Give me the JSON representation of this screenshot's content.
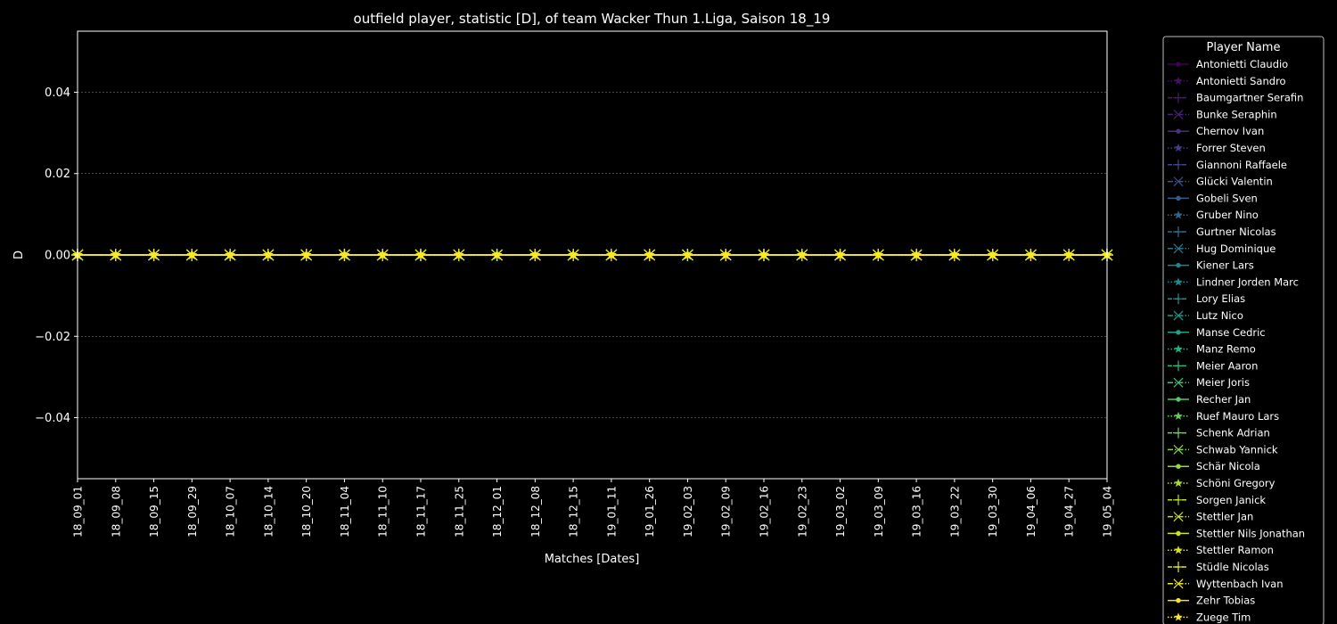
{
  "colors": {
    "background": "#000000",
    "foreground": "#ffffff",
    "grid": "#777777"
  },
  "chart_data": {
    "type": "line",
    "title": "outfield player, statistic [D], of team Wacker Thun 1.Liga, Saison 18_19",
    "xlabel": "Matches [Dates]",
    "ylabel": "D",
    "ylim": [
      -0.055,
      0.055
    ],
    "yticks": [
      -0.04,
      -0.02,
      0.0,
      0.02,
      0.04
    ],
    "ytick_labels": [
      "−0.04",
      "−0.02",
      "0.00",
      "0.02",
      "0.04"
    ],
    "grid": true,
    "x": [
      "18_09_01",
      "18_09_08",
      "18_09_15",
      "18_09_29",
      "18_10_07",
      "18_10_14",
      "18_10_20",
      "18_11_04",
      "18_11_10",
      "18_11_17",
      "18_11_25",
      "18_12_01",
      "18_12_08",
      "18_12_15",
      "19_01_11",
      "19_01_26",
      "19_02_03",
      "19_02_09",
      "19_02_16",
      "19_02_23",
      "19_03_02",
      "19_03_09",
      "19_03_16",
      "19_03_22",
      "19_03_30",
      "19_04_06",
      "19_04_27",
      "19_05_04"
    ],
    "legend": {
      "title": "Player Name",
      "placement": "outside-right"
    },
    "series": [
      {
        "name": "Antonietti Claudio",
        "color": "#440154",
        "marker": "circle",
        "dash": "solid",
        "values": [
          0,
          0,
          0,
          0,
          0,
          0,
          0,
          0,
          0,
          0,
          0,
          0,
          0,
          0,
          0,
          0,
          0,
          0,
          0,
          0,
          0,
          0,
          0,
          0,
          0,
          0,
          0,
          0
        ]
      },
      {
        "name": "Antonietti Sandro",
        "color": "#470e61",
        "marker": "star",
        "dash": "dotted",
        "values": [
          0,
          0,
          0,
          0,
          0,
          0,
          0,
          0,
          0,
          0,
          0,
          0,
          0,
          0,
          0,
          0,
          0,
          0,
          0,
          0,
          0,
          0,
          0,
          0,
          0,
          0,
          0,
          0
        ]
      },
      {
        "name": "Baumgartner Serafin",
        "color": "#481b6d",
        "marker": "plus",
        "dash": "dashed",
        "values": [
          0,
          0,
          0,
          0,
          0,
          0,
          0,
          0,
          0,
          0,
          0,
          0,
          0,
          0,
          0,
          0,
          0,
          0,
          0,
          0,
          0,
          0,
          0,
          0,
          0,
          0,
          0,
          0
        ]
      },
      {
        "name": "Bunke Seraphin",
        "color": "#482576",
        "marker": "x",
        "dash": "dashdot",
        "values": [
          0,
          0,
          0,
          0,
          0,
          0,
          0,
          0,
          0,
          0,
          0,
          0,
          0,
          0,
          0,
          0,
          0,
          0,
          0,
          0,
          0,
          0,
          0,
          0,
          0,
          0,
          0,
          0
        ]
      },
      {
        "name": "Chernov Ivan",
        "color": "#46307e",
        "marker": "circle",
        "dash": "solid",
        "values": [
          0,
          0,
          0,
          0,
          0,
          0,
          0,
          0,
          0,
          0,
          0,
          0,
          0,
          0,
          0,
          0,
          0,
          0,
          0,
          0,
          0,
          0,
          0,
          0,
          0,
          0,
          0,
          0
        ]
      },
      {
        "name": "Forrer Steven",
        "color": "#433e85",
        "marker": "star",
        "dash": "dotted",
        "values": [
          0,
          0,
          0,
          0,
          0,
          0,
          0,
          0,
          0,
          0,
          0,
          0,
          0,
          0,
          0,
          0,
          0,
          0,
          0,
          0,
          0,
          0,
          0,
          0,
          0,
          0,
          0,
          0
        ]
      },
      {
        "name": "Giannoni Raffaele",
        "color": "#3f4889",
        "marker": "plus",
        "dash": "dashed",
        "values": [
          0,
          0,
          0,
          0,
          0,
          0,
          0,
          0,
          0,
          0,
          0,
          0,
          0,
          0,
          0,
          0,
          0,
          0,
          0,
          0,
          0,
          0,
          0,
          0,
          0,
          0,
          0,
          0
        ]
      },
      {
        "name": "Glücki Valentin",
        "color": "#3b528b",
        "marker": "x",
        "dash": "dashdot",
        "values": [
          0,
          0,
          0,
          0,
          0,
          0,
          0,
          0,
          0,
          0,
          0,
          0,
          0,
          0,
          0,
          0,
          0,
          0,
          0,
          0,
          0,
          0,
          0,
          0,
          0,
          0,
          0,
          0
        ]
      },
      {
        "name": "Gobeli Sven",
        "color": "#365c8d",
        "marker": "circle",
        "dash": "solid",
        "values": [
          0,
          0,
          0,
          0,
          0,
          0,
          0,
          0,
          0,
          0,
          0,
          0,
          0,
          0,
          0,
          0,
          0,
          0,
          0,
          0,
          0,
          0,
          0,
          0,
          0,
          0,
          0,
          0
        ]
      },
      {
        "name": "Gruber Nino",
        "color": "#32658e",
        "marker": "star",
        "dash": "dotted",
        "values": [
          0,
          0,
          0,
          0,
          0,
          0,
          0,
          0,
          0,
          0,
          0,
          0,
          0,
          0,
          0,
          0,
          0,
          0,
          0,
          0,
          0,
          0,
          0,
          0,
          0,
          0,
          0,
          0
        ]
      },
      {
        "name": "Gurtner Nicolas",
        "color": "#2e6e8e",
        "marker": "plus",
        "dash": "dashed",
        "values": [
          0,
          0,
          0,
          0,
          0,
          0,
          0,
          0,
          0,
          0,
          0,
          0,
          0,
          0,
          0,
          0,
          0,
          0,
          0,
          0,
          0,
          0,
          0,
          0,
          0,
          0,
          0,
          0
        ]
      },
      {
        "name": "Hug Dominique",
        "color": "#2a788e",
        "marker": "x",
        "dash": "dashdot",
        "values": [
          0,
          0,
          0,
          0,
          0,
          0,
          0,
          0,
          0,
          0,
          0,
          0,
          0,
          0,
          0,
          0,
          0,
          0,
          0,
          0,
          0,
          0,
          0,
          0,
          0,
          0,
          0,
          0
        ]
      },
      {
        "name": "Kiener Lars",
        "color": "#27808e",
        "marker": "circle",
        "dash": "solid",
        "values": [
          0,
          0,
          0,
          0,
          0,
          0,
          0,
          0,
          0,
          0,
          0,
          0,
          0,
          0,
          0,
          0,
          0,
          0,
          0,
          0,
          0,
          0,
          0,
          0,
          0,
          0,
          0,
          0
        ]
      },
      {
        "name": "Lindner Jorden Marc",
        "color": "#23888e",
        "marker": "star",
        "dash": "dotted",
        "values": [
          0,
          0,
          0,
          0,
          0,
          0,
          0,
          0,
          0,
          0,
          0,
          0,
          0,
          0,
          0,
          0,
          0,
          0,
          0,
          0,
          0,
          0,
          0,
          0,
          0,
          0,
          0,
          0
        ]
      },
      {
        "name": "Lory Elias",
        "color": "#21918c",
        "marker": "plus",
        "dash": "dashed",
        "values": [
          0,
          0,
          0,
          0,
          0,
          0,
          0,
          0,
          0,
          0,
          0,
          0,
          0,
          0,
          0,
          0,
          0,
          0,
          0,
          0,
          0,
          0,
          0,
          0,
          0,
          0,
          0,
          0
        ]
      },
      {
        "name": "Lutz Nico",
        "color": "#1f9a8a",
        "marker": "x",
        "dash": "dashdot",
        "values": [
          0,
          0,
          0,
          0,
          0,
          0,
          0,
          0,
          0,
          0,
          0,
          0,
          0,
          0,
          0,
          0,
          0,
          0,
          0,
          0,
          0,
          0,
          0,
          0,
          0,
          0,
          0,
          0
        ]
      },
      {
        "name": "Manse Cedric",
        "color": "#20a386",
        "marker": "circle",
        "dash": "solid",
        "values": [
          0,
          0,
          0,
          0,
          0,
          0,
          0,
          0,
          0,
          0,
          0,
          0,
          0,
          0,
          0,
          0,
          0,
          0,
          0,
          0,
          0,
          0,
          0,
          0,
          0,
          0,
          0,
          0
        ]
      },
      {
        "name": "Manz Remo",
        "color": "#29af7f",
        "marker": "star",
        "dash": "dotted",
        "values": [
          0,
          0,
          0,
          0,
          0,
          0,
          0,
          0,
          0,
          0,
          0,
          0,
          0,
          0,
          0,
          0,
          0,
          0,
          0,
          0,
          0,
          0,
          0,
          0,
          0,
          0,
          0,
          0
        ]
      },
      {
        "name": "Meier Aaron",
        "color": "#35b779",
        "marker": "plus",
        "dash": "dashed",
        "values": [
          0,
          0,
          0,
          0,
          0,
          0,
          0,
          0,
          0,
          0,
          0,
          0,
          0,
          0,
          0,
          0,
          0,
          0,
          0,
          0,
          0,
          0,
          0,
          0,
          0,
          0,
          0,
          0
        ]
      },
      {
        "name": "Meier Joris",
        "color": "#44bf70",
        "marker": "x",
        "dash": "dashdot",
        "values": [
          0,
          0,
          0,
          0,
          0,
          0,
          0,
          0,
          0,
          0,
          0,
          0,
          0,
          0,
          0,
          0,
          0,
          0,
          0,
          0,
          0,
          0,
          0,
          0,
          0,
          0,
          0,
          0
        ]
      },
      {
        "name": "Recher Jan",
        "color": "#54c568",
        "marker": "circle",
        "dash": "solid",
        "values": [
          0,
          0,
          0,
          0,
          0,
          0,
          0,
          0,
          0,
          0,
          0,
          0,
          0,
          0,
          0,
          0,
          0,
          0,
          0,
          0,
          0,
          0,
          0,
          0,
          0,
          0,
          0,
          0
        ]
      },
      {
        "name": "Ruef Mauro Lars",
        "color": "#63cb5f",
        "marker": "star",
        "dash": "dotted",
        "values": [
          0,
          0,
          0,
          0,
          0,
          0,
          0,
          0,
          0,
          0,
          0,
          0,
          0,
          0,
          0,
          0,
          0,
          0,
          0,
          0,
          0,
          0,
          0,
          0,
          0,
          0,
          0,
          0
        ]
      },
      {
        "name": "Schenk Adrian",
        "color": "#75d054",
        "marker": "plus",
        "dash": "dashed",
        "values": [
          0,
          0,
          0,
          0,
          0,
          0,
          0,
          0,
          0,
          0,
          0,
          0,
          0,
          0,
          0,
          0,
          0,
          0,
          0,
          0,
          0,
          0,
          0,
          0,
          0,
          0,
          0,
          0
        ]
      },
      {
        "name": "Schwab Yannick",
        "color": "#86d549",
        "marker": "x",
        "dash": "dashdot",
        "values": [
          0,
          0,
          0,
          0,
          0,
          0,
          0,
          0,
          0,
          0,
          0,
          0,
          0,
          0,
          0,
          0,
          0,
          0,
          0,
          0,
          0,
          0,
          0,
          0,
          0,
          0,
          0,
          0
        ]
      },
      {
        "name": "Schär Nicola",
        "color": "#95d840",
        "marker": "circle",
        "dash": "solid",
        "values": [
          0,
          0,
          0,
          0,
          0,
          0,
          0,
          0,
          0,
          0,
          0,
          0,
          0,
          0,
          0,
          0,
          0,
          0,
          0,
          0,
          0,
          0,
          0,
          0,
          0,
          0,
          0,
          0
        ]
      },
      {
        "name": "Schöni Gregory",
        "color": "#a8db34",
        "marker": "star",
        "dash": "dotted",
        "values": [
          0,
          0,
          0,
          0,
          0,
          0,
          0,
          0,
          0,
          0,
          0,
          0,
          0,
          0,
          0,
          0,
          0,
          0,
          0,
          0,
          0,
          0,
          0,
          0,
          0,
          0,
          0,
          0
        ]
      },
      {
        "name": "Sorgen Janick",
        "color": "#b8de29",
        "marker": "plus",
        "dash": "dashed",
        "values": [
          0,
          0,
          0,
          0,
          0,
          0,
          0,
          0,
          0,
          0,
          0,
          0,
          0,
          0,
          0,
          0,
          0,
          0,
          0,
          0,
          0,
          0,
          0,
          0,
          0,
          0,
          0,
          0
        ]
      },
      {
        "name": "Stettler Jan",
        "color": "#c8e020",
        "marker": "x",
        "dash": "dashdot",
        "values": [
          0,
          0,
          0,
          0,
          0,
          0,
          0,
          0,
          0,
          0,
          0,
          0,
          0,
          0,
          0,
          0,
          0,
          0,
          0,
          0,
          0,
          0,
          0,
          0,
          0,
          0,
          0,
          0
        ]
      },
      {
        "name": "Stettler Nils Jonathan",
        "color": "#d0e11c",
        "marker": "circle",
        "dash": "solid",
        "values": [
          0,
          0,
          0,
          0,
          0,
          0,
          0,
          0,
          0,
          0,
          0,
          0,
          0,
          0,
          0,
          0,
          0,
          0,
          0,
          0,
          0,
          0,
          0,
          0,
          0,
          0,
          0,
          0
        ]
      },
      {
        "name": "Stettler Ramon",
        "color": "#dae319",
        "marker": "star",
        "dash": "dotted",
        "values": [
          0,
          0,
          0,
          0,
          0,
          0,
          0,
          0,
          0,
          0,
          0,
          0,
          0,
          0,
          0,
          0,
          0,
          0,
          0,
          0,
          0,
          0,
          0,
          0,
          0,
          0,
          0,
          0
        ]
      },
      {
        "name": "Stüdle Nicolas",
        "color": "#e2e418",
        "marker": "plus",
        "dash": "dashed",
        "values": [
          0,
          0,
          0,
          0,
          0,
          0,
          0,
          0,
          0,
          0,
          0,
          0,
          0,
          0,
          0,
          0,
          0,
          0,
          0,
          0,
          0,
          0,
          0,
          0,
          0,
          0,
          0,
          0
        ]
      },
      {
        "name": "Wyttenbach Ivan",
        "color": "#eae51a",
        "marker": "x",
        "dash": "dashdot",
        "values": [
          0,
          0,
          0,
          0,
          0,
          0,
          0,
          0,
          0,
          0,
          0,
          0,
          0,
          0,
          0,
          0,
          0,
          0,
          0,
          0,
          0,
          0,
          0,
          0,
          0,
          0,
          0,
          0
        ]
      },
      {
        "name": "Zehr Tobias",
        "color": "#f4e61e",
        "marker": "circle",
        "dash": "solid",
        "values": [
          0,
          0,
          0,
          0,
          0,
          0,
          0,
          0,
          0,
          0,
          0,
          0,
          0,
          0,
          0,
          0,
          0,
          0,
          0,
          0,
          0,
          0,
          0,
          0,
          0,
          0,
          0,
          0
        ]
      },
      {
        "name": "Zuege Tim",
        "color": "#fde725",
        "marker": "star",
        "dash": "dotted",
        "values": [
          0,
          0,
          0,
          0,
          0,
          0,
          0,
          0,
          0,
          0,
          0,
          0,
          0,
          0,
          0,
          0,
          0,
          0,
          0,
          0,
          0,
          0,
          0,
          0,
          0,
          0,
          0,
          0
        ]
      }
    ]
  }
}
